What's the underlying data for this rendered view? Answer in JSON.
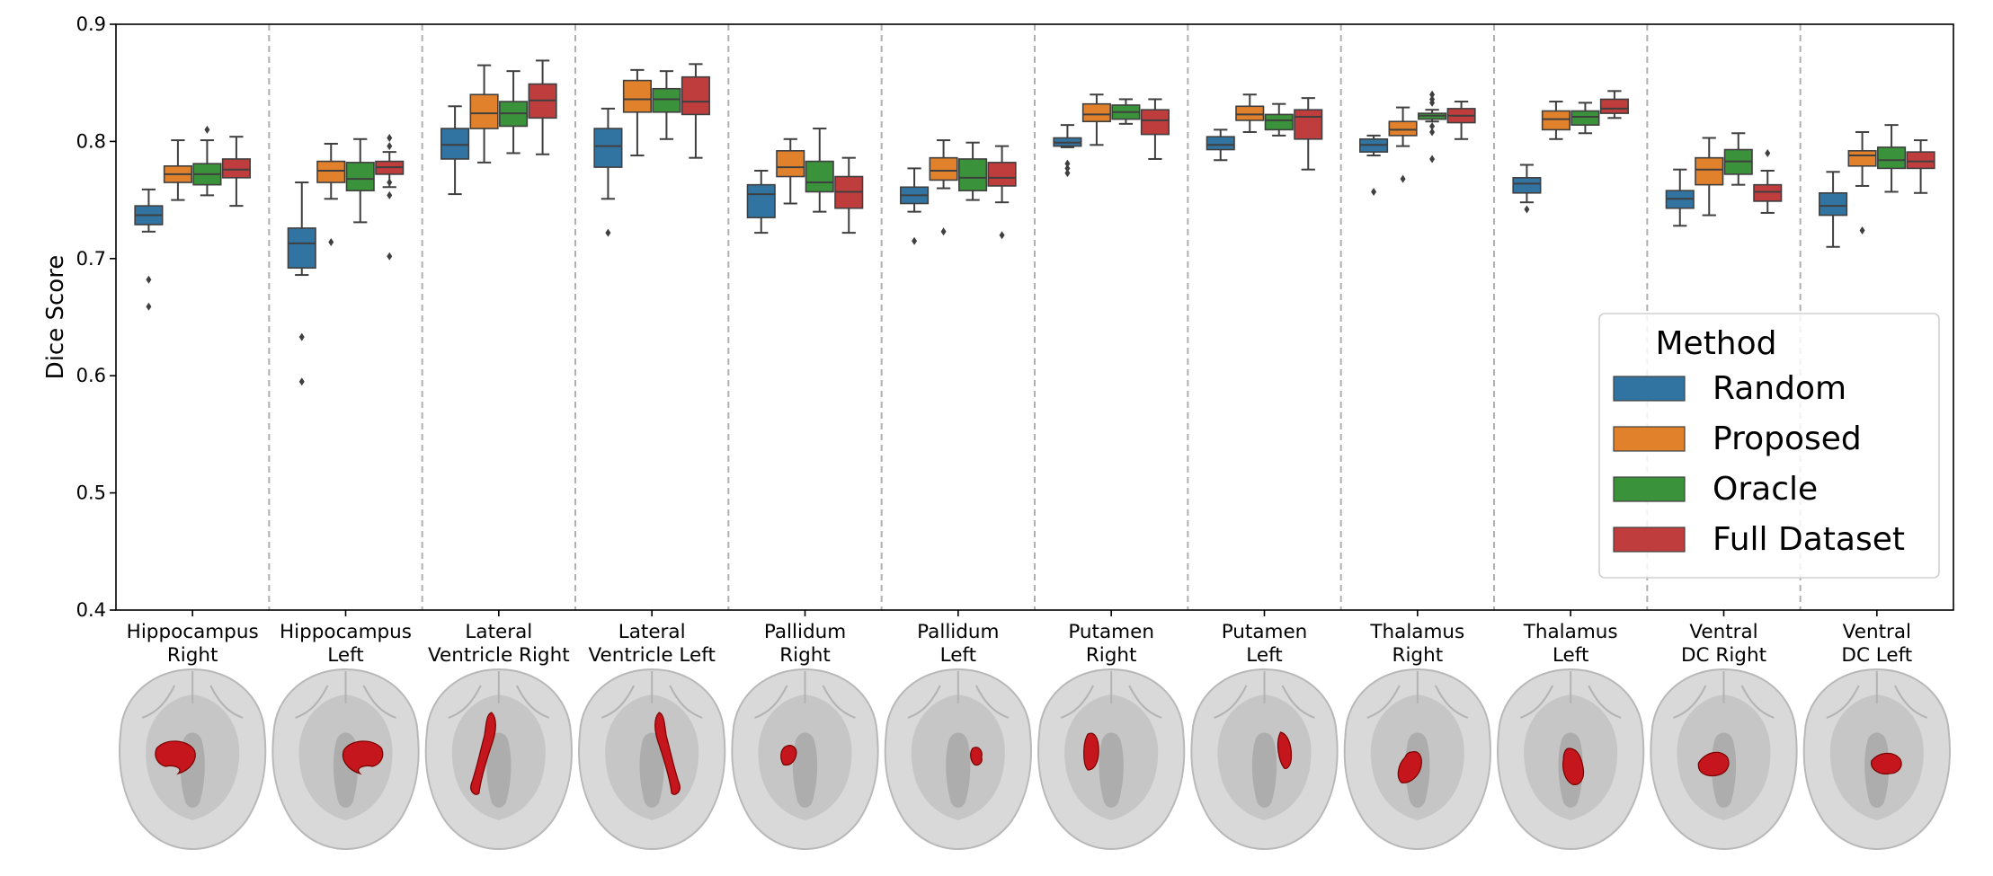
{
  "chart_data": {
    "type": "box",
    "title": "",
    "xlabel": "",
    "ylabel": "Dice Score",
    "ylim": [
      0.4,
      0.9
    ],
    "yticks": [
      "0.4",
      "0.5",
      "0.6",
      "0.7",
      "0.8",
      "0.9"
    ],
    "grid": false,
    "categories": [
      [
        "Hippocampus",
        "Right"
      ],
      [
        "Hippocampus",
        "Left"
      ],
      [
        "Lateral",
        "Ventricle Right"
      ],
      [
        "Lateral",
        "Ventricle Left"
      ],
      [
        "Pallidum",
        "Right"
      ],
      [
        "Pallidum",
        "Left"
      ],
      [
        "Putamen",
        "Right"
      ],
      [
        "Putamen",
        "Left"
      ],
      [
        "Thalamus",
        "Right"
      ],
      [
        "Thalamus",
        "Left"
      ],
      [
        "Ventral",
        "DC Right"
      ],
      [
        "Ventral",
        "DC Left"
      ]
    ],
    "legend": {
      "title": "Method",
      "placement": "lower-right",
      "entries": [
        "Random",
        "Proposed",
        "Oracle",
        "Full Dataset"
      ]
    },
    "colors": [
      "#3274a1",
      "#e1812c",
      "#3a923a",
      "#c03d3e"
    ],
    "series": [
      {
        "name": "Random",
        "boxes": [
          {
            "wl": 0.723,
            "q1": 0.729,
            "med": 0.737,
            "q3": 0.745,
            "wh": 0.759,
            "outliers": [
              0.682,
              0.659
            ]
          },
          {
            "wl": 0.686,
            "q1": 0.692,
            "med": 0.713,
            "q3": 0.726,
            "wh": 0.765,
            "outliers": [
              0.633,
              0.595
            ]
          },
          {
            "wl": 0.755,
            "q1": 0.785,
            "med": 0.797,
            "q3": 0.811,
            "wh": 0.83,
            "outliers": []
          },
          {
            "wl": 0.751,
            "q1": 0.778,
            "med": 0.796,
            "q3": 0.811,
            "wh": 0.828,
            "outliers": [
              0.722
            ]
          },
          {
            "wl": 0.722,
            "q1": 0.735,
            "med": 0.755,
            "q3": 0.763,
            "wh": 0.775,
            "outliers": []
          },
          {
            "wl": 0.74,
            "q1": 0.747,
            "med": 0.754,
            "q3": 0.761,
            "wh": 0.777,
            "outliers": [
              0.715
            ]
          },
          {
            "wl": 0.795,
            "q1": 0.796,
            "med": 0.799,
            "q3": 0.803,
            "wh": 0.814,
            "outliers": [
              0.781,
              0.777,
              0.773
            ]
          },
          {
            "wl": 0.784,
            "q1": 0.793,
            "med": 0.797,
            "q3": 0.804,
            "wh": 0.81,
            "outliers": []
          },
          {
            "wl": 0.788,
            "q1": 0.791,
            "med": 0.797,
            "q3": 0.802,
            "wh": 0.805,
            "outliers": [
              0.757
            ]
          },
          {
            "wl": 0.748,
            "q1": 0.756,
            "med": 0.764,
            "q3": 0.769,
            "wh": 0.78,
            "outliers": [
              0.742
            ]
          },
          {
            "wl": 0.728,
            "q1": 0.743,
            "med": 0.751,
            "q3": 0.758,
            "wh": 0.776,
            "outliers": []
          },
          {
            "wl": 0.71,
            "q1": 0.737,
            "med": 0.745,
            "q3": 0.756,
            "wh": 0.774,
            "outliers": []
          }
        ]
      },
      {
        "name": "Proposed",
        "boxes": [
          {
            "wl": 0.75,
            "q1": 0.765,
            "med": 0.772,
            "q3": 0.779,
            "wh": 0.801,
            "outliers": []
          },
          {
            "wl": 0.751,
            "q1": 0.765,
            "med": 0.775,
            "q3": 0.783,
            "wh": 0.798,
            "outliers": [
              0.714
            ]
          },
          {
            "wl": 0.782,
            "q1": 0.811,
            "med": 0.824,
            "q3": 0.84,
            "wh": 0.865,
            "outliers": []
          },
          {
            "wl": 0.788,
            "q1": 0.825,
            "med": 0.836,
            "q3": 0.852,
            "wh": 0.861,
            "outliers": []
          },
          {
            "wl": 0.747,
            "q1": 0.77,
            "med": 0.778,
            "q3": 0.792,
            "wh": 0.802,
            "outliers": []
          },
          {
            "wl": 0.76,
            "q1": 0.767,
            "med": 0.775,
            "q3": 0.786,
            "wh": 0.801,
            "outliers": [
              0.723
            ]
          },
          {
            "wl": 0.797,
            "q1": 0.817,
            "med": 0.823,
            "q3": 0.832,
            "wh": 0.84,
            "outliers": []
          },
          {
            "wl": 0.808,
            "q1": 0.818,
            "med": 0.823,
            "q3": 0.83,
            "wh": 0.84,
            "outliers": []
          },
          {
            "wl": 0.796,
            "q1": 0.805,
            "med": 0.81,
            "q3": 0.817,
            "wh": 0.829,
            "outliers": [
              0.768
            ]
          },
          {
            "wl": 0.802,
            "q1": 0.81,
            "med": 0.819,
            "q3": 0.826,
            "wh": 0.834,
            "outliers": []
          },
          {
            "wl": 0.737,
            "q1": 0.763,
            "med": 0.776,
            "q3": 0.786,
            "wh": 0.803,
            "outliers": []
          },
          {
            "wl": 0.762,
            "q1": 0.779,
            "med": 0.788,
            "q3": 0.792,
            "wh": 0.808,
            "outliers": [
              0.724
            ]
          }
        ]
      },
      {
        "name": "Oracle",
        "boxes": [
          {
            "wl": 0.754,
            "q1": 0.763,
            "med": 0.772,
            "q3": 0.781,
            "wh": 0.801,
            "outliers": [
              0.81
            ]
          },
          {
            "wl": 0.731,
            "q1": 0.758,
            "med": 0.768,
            "q3": 0.782,
            "wh": 0.802,
            "outliers": []
          },
          {
            "wl": 0.79,
            "q1": 0.813,
            "med": 0.824,
            "q3": 0.834,
            "wh": 0.86,
            "outliers": []
          },
          {
            "wl": 0.802,
            "q1": 0.825,
            "med": 0.836,
            "q3": 0.845,
            "wh": 0.86,
            "outliers": []
          },
          {
            "wl": 0.74,
            "q1": 0.757,
            "med": 0.765,
            "q3": 0.783,
            "wh": 0.811,
            "outliers": []
          },
          {
            "wl": 0.75,
            "q1": 0.758,
            "med": 0.769,
            "q3": 0.785,
            "wh": 0.799,
            "outliers": []
          },
          {
            "wl": 0.815,
            "q1": 0.819,
            "med": 0.825,
            "q3": 0.831,
            "wh": 0.836,
            "outliers": []
          },
          {
            "wl": 0.805,
            "q1": 0.81,
            "med": 0.818,
            "q3": 0.823,
            "wh": 0.832,
            "outliers": []
          },
          {
            "wl": 0.817,
            "q1": 0.819,
            "med": 0.822,
            "q3": 0.824,
            "wh": 0.827,
            "outliers": [
              0.84,
              0.836,
              0.833,
              0.813,
              0.808,
              0.785
            ]
          },
          {
            "wl": 0.807,
            "q1": 0.814,
            "med": 0.821,
            "q3": 0.826,
            "wh": 0.833,
            "outliers": []
          },
          {
            "wl": 0.763,
            "q1": 0.772,
            "med": 0.783,
            "q3": 0.793,
            "wh": 0.807,
            "outliers": []
          },
          {
            "wl": 0.757,
            "q1": 0.777,
            "med": 0.784,
            "q3": 0.795,
            "wh": 0.814,
            "outliers": []
          }
        ]
      },
      {
        "name": "Full Dataset",
        "boxes": [
          {
            "wl": 0.745,
            "q1": 0.769,
            "med": 0.776,
            "q3": 0.785,
            "wh": 0.804,
            "outliers": []
          },
          {
            "wl": 0.761,
            "q1": 0.772,
            "med": 0.778,
            "q3": 0.783,
            "wh": 0.791,
            "outliers": [
              0.803,
              0.796,
              0.765,
              0.754,
              0.702
            ]
          },
          {
            "wl": 0.789,
            "q1": 0.82,
            "med": 0.835,
            "q3": 0.849,
            "wh": 0.869,
            "outliers": []
          },
          {
            "wl": 0.786,
            "q1": 0.823,
            "med": 0.834,
            "q3": 0.855,
            "wh": 0.866,
            "outliers": []
          },
          {
            "wl": 0.722,
            "q1": 0.743,
            "med": 0.757,
            "q3": 0.77,
            "wh": 0.786,
            "outliers": []
          },
          {
            "wl": 0.748,
            "q1": 0.762,
            "med": 0.769,
            "q3": 0.782,
            "wh": 0.796,
            "outliers": [
              0.72
            ]
          },
          {
            "wl": 0.785,
            "q1": 0.806,
            "med": 0.818,
            "q3": 0.827,
            "wh": 0.836,
            "outliers": []
          },
          {
            "wl": 0.776,
            "q1": 0.802,
            "med": 0.821,
            "q3": 0.827,
            "wh": 0.837,
            "outliers": []
          },
          {
            "wl": 0.802,
            "q1": 0.816,
            "med": 0.822,
            "q3": 0.828,
            "wh": 0.834,
            "outliers": []
          },
          {
            "wl": 0.82,
            "q1": 0.824,
            "med": 0.828,
            "q3": 0.836,
            "wh": 0.843,
            "outliers": []
          },
          {
            "wl": 0.739,
            "q1": 0.749,
            "med": 0.757,
            "q3": 0.763,
            "wh": 0.775,
            "outliers": [
              0.79
            ]
          },
          {
            "wl": 0.756,
            "q1": 0.777,
            "med": 0.783,
            "q3": 0.791,
            "wh": 0.801,
            "outliers": []
          }
        ]
      }
    ],
    "brain_views": [
      {
        "structure": "Hippocampus Right",
        "highlight_color": "#c4161c"
      },
      {
        "structure": "Hippocampus Left",
        "highlight_color": "#c4161c"
      },
      {
        "structure": "Lateral Ventricle Right",
        "highlight_color": "#c4161c"
      },
      {
        "structure": "Lateral Ventricle Left",
        "highlight_color": "#c4161c"
      },
      {
        "structure": "Pallidum Right",
        "highlight_color": "#c4161c"
      },
      {
        "structure": "Pallidum Left",
        "highlight_color": "#c4161c"
      },
      {
        "structure": "Putamen Right",
        "highlight_color": "#c4161c"
      },
      {
        "structure": "Putamen Left",
        "highlight_color": "#c4161c"
      },
      {
        "structure": "Thalamus Right",
        "highlight_color": "#c4161c"
      },
      {
        "structure": "Thalamus Left",
        "highlight_color": "#c4161c"
      },
      {
        "structure": "Ventral DC Right",
        "highlight_color": "#c4161c"
      },
      {
        "structure": "Ventral DC Left",
        "highlight_color": "#c4161c"
      }
    ]
  }
}
